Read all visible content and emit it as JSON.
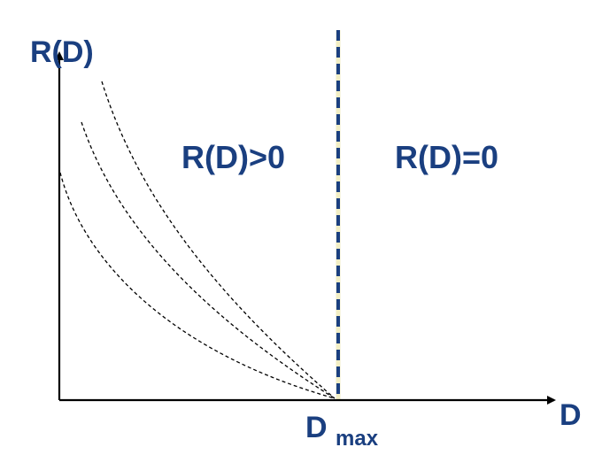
{
  "y_axis_label": "R(D)",
  "x_axis_label": "D",
  "dmax_label": {
    "main": "D",
    "subscript": "max"
  },
  "region_positive_label": "R(D)>0",
  "region_zero_label": "R(D)=0",
  "colors": {
    "label_text": "#1a3f80",
    "boundary_line": "#1a3f80",
    "boundary_gap_highlight": "#f2eec4",
    "axes": "#000000",
    "curves": "#000000"
  },
  "icons": {
    "x_axis_arrow": "arrowhead-right",
    "y_axis_arrow": "arrowhead-up"
  }
}
